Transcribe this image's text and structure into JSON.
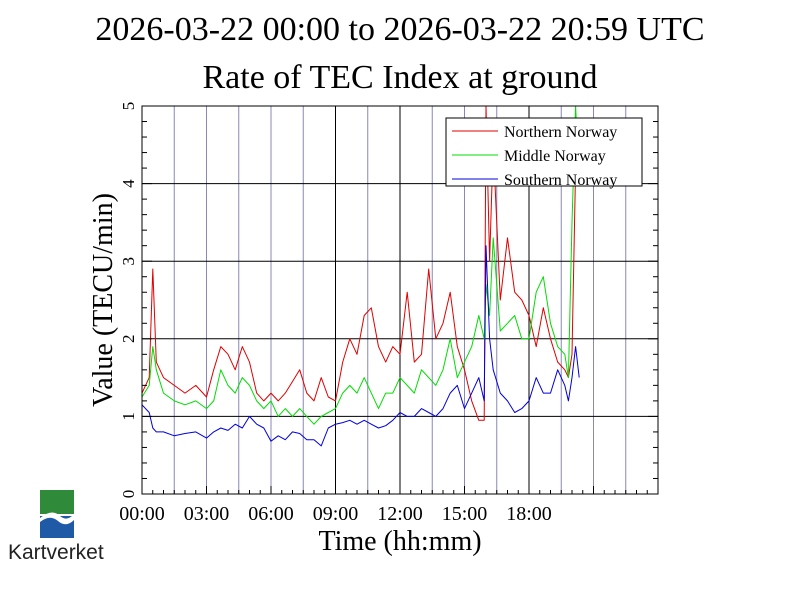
{
  "chart_data": {
    "type": "line",
    "title": "2026-03-22 00:00 to 2026-03-22 20:59 UTC",
    "subtitle": "Rate of TEC Index at ground",
    "xlabel": "Time (hh:mm)",
    "ylabel": "Value (TECU/min)",
    "xlim": [
      "00:00",
      "24:00"
    ],
    "ylim": [
      0,
      5
    ],
    "x_ticks": [
      "00:00",
      "03:00",
      "06:00",
      "09:00",
      "12:00",
      "15:00",
      "18:00"
    ],
    "y_ticks": [
      "0",
      "1",
      "2",
      "3",
      "4",
      "5"
    ],
    "grid": true,
    "legend_position": "top-right",
    "x": [
      "00:00",
      "00:20",
      "00:30",
      "00:40",
      "01:00",
      "01:30",
      "02:00",
      "02:30",
      "03:00",
      "03:20",
      "03:40",
      "04:00",
      "04:20",
      "04:40",
      "05:00",
      "05:20",
      "05:40",
      "06:00",
      "06:20",
      "06:40",
      "07:00",
      "07:20",
      "07:40",
      "08:00",
      "08:20",
      "08:40",
      "09:00",
      "09:20",
      "09:40",
      "10:00",
      "10:20",
      "10:40",
      "11:00",
      "11:20",
      "11:40",
      "12:00",
      "12:20",
      "12:40",
      "13:00",
      "13:20",
      "13:40",
      "14:00",
      "14:20",
      "14:40",
      "15:00",
      "15:20",
      "15:40",
      "15:55",
      "16:00",
      "16:10",
      "16:20",
      "16:40",
      "17:00",
      "17:20",
      "17:40",
      "18:00",
      "18:20",
      "18:40",
      "19:00",
      "19:20",
      "19:40",
      "19:50",
      "20:00",
      "20:10",
      "20:20"
    ],
    "series": [
      {
        "name": "Northern Norway",
        "color": "#e00000",
        "values": [
          1.3,
          1.5,
          2.9,
          1.7,
          1.5,
          1.4,
          1.3,
          1.4,
          1.25,
          1.6,
          1.9,
          1.8,
          1.6,
          1.9,
          1.7,
          1.3,
          1.2,
          1.3,
          1.2,
          1.3,
          1.45,
          1.6,
          1.3,
          1.2,
          1.5,
          1.25,
          1.2,
          1.7,
          2.0,
          1.8,
          2.3,
          2.4,
          1.9,
          1.7,
          1.9,
          1.8,
          2.6,
          1.7,
          1.8,
          2.9,
          2.0,
          2.2,
          2.6,
          1.9,
          1.6,
          1.2,
          0.95,
          0.95,
          5.0,
          3.0,
          4.5,
          2.5,
          3.3,
          2.6,
          2.5,
          2.3,
          1.9,
          2.4,
          2.0,
          1.7,
          1.6,
          1.5,
          1.8,
          4.2,
          4.7
        ]
      },
      {
        "name": "Middle Norway",
        "color": "#00dd00",
        "values": [
          1.25,
          1.4,
          1.9,
          1.6,
          1.3,
          1.2,
          1.15,
          1.2,
          1.1,
          1.2,
          1.6,
          1.4,
          1.3,
          1.5,
          1.4,
          1.2,
          1.1,
          1.2,
          1.0,
          1.1,
          1.0,
          1.1,
          1.0,
          0.9,
          1.0,
          1.05,
          1.1,
          1.3,
          1.4,
          1.3,
          1.5,
          1.3,
          1.1,
          1.3,
          1.3,
          1.5,
          1.4,
          1.3,
          1.6,
          1.5,
          1.4,
          1.6,
          2.0,
          1.5,
          1.7,
          1.9,
          2.3,
          2.0,
          2.7,
          2.3,
          3.3,
          2.1,
          2.2,
          2.3,
          2.0,
          2.0,
          2.6,
          2.8,
          2.2,
          1.9,
          1.8,
          1.5,
          3.5,
          5.0,
          4.0
        ]
      },
      {
        "name": "Southern Norway",
        "color": "#0000dd",
        "values": [
          1.15,
          1.05,
          0.85,
          0.8,
          0.8,
          0.75,
          0.78,
          0.8,
          0.72,
          0.8,
          0.85,
          0.82,
          0.9,
          0.85,
          1.0,
          0.9,
          0.85,
          0.68,
          0.75,
          0.7,
          0.8,
          0.78,
          0.7,
          0.7,
          0.62,
          0.85,
          0.9,
          0.92,
          0.95,
          0.9,
          0.95,
          0.9,
          0.85,
          0.88,
          0.95,
          1.05,
          1.0,
          1.0,
          1.1,
          1.05,
          1.0,
          1.1,
          1.3,
          1.4,
          1.1,
          1.3,
          1.5,
          1.2,
          3.2,
          2.0,
          1.6,
          1.3,
          1.2,
          1.05,
          1.1,
          1.2,
          1.5,
          1.3,
          1.3,
          1.6,
          1.4,
          1.2,
          1.5,
          1.9,
          1.5
        ]
      }
    ]
  },
  "logo": {
    "text": "Kartverket",
    "colors": {
      "green": "#2f8a3a",
      "blue": "#1f5aa6"
    }
  }
}
